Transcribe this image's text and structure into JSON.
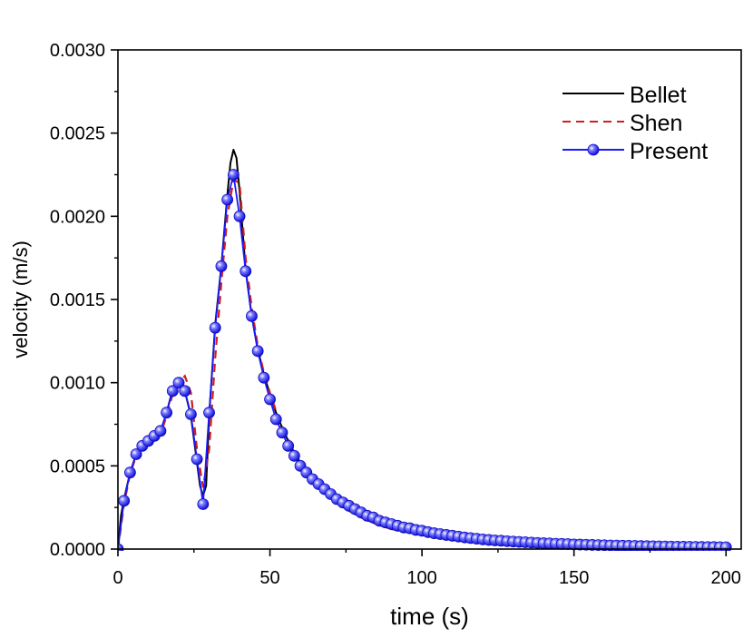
{
  "chart_data": {
    "type": "line",
    "title": "",
    "xlabel": "time (s)",
    "ylabel": "velocity (m/s)",
    "xlim": [
      0,
      205
    ],
    "ylim": [
      0,
      0.003
    ],
    "x_ticks": [
      0,
      50,
      100,
      150,
      200
    ],
    "x_tick_labels": [
      "0",
      "50",
      "100",
      "150",
      "200"
    ],
    "y_ticks": [
      0,
      0.0005,
      0.001,
      0.0015,
      0.002,
      0.0025,
      0.003
    ],
    "y_tick_labels": [
      "0.0000",
      "0.0005",
      "0.0010",
      "0.0015",
      "0.0020",
      "0.0025",
      "0.0030"
    ],
    "grid": false,
    "legend_position": "top-right",
    "series": [
      {
        "name": "Bellet",
        "style": "solid",
        "color": "#000000",
        "points": [
          [
            0,
            0
          ],
          [
            1,
            0.0002
          ],
          [
            2,
            0.0003
          ],
          [
            4,
            0.00046
          ],
          [
            6,
            0.00057
          ],
          [
            8,
            0.00063
          ],
          [
            10,
            0.00066
          ],
          [
            12,
            0.00068
          ],
          [
            14,
            0.0007
          ],
          [
            16,
            0.00082
          ],
          [
            18,
            0.00096
          ],
          [
            20,
            0.00101
          ],
          [
            22,
            0.00095
          ],
          [
            24,
            0.0008
          ],
          [
            26,
            0.00052
          ],
          [
            27,
            0.00038
          ],
          [
            28,
            0.00032
          ],
          [
            29,
            0.00038
          ],
          [
            30,
            0.0008
          ],
          [
            32,
            0.00135
          ],
          [
            34,
            0.0017
          ],
          [
            36,
            0.00213
          ],
          [
            37,
            0.00232
          ],
          [
            38,
            0.0024
          ],
          [
            39,
            0.00235
          ],
          [
            40,
            0.00215
          ],
          [
            42,
            0.00168
          ],
          [
            44,
            0.0014
          ],
          [
            46,
            0.0012
          ],
          [
            48,
            0.00105
          ],
          [
            50,
            0.00093
          ],
          [
            52,
            0.00082
          ],
          [
            54,
            0.00073
          ],
          [
            56,
            0.00065
          ],
          [
            58,
            0.00058
          ],
          [
            60,
            0.00052
          ],
          [
            65,
            0.0004
          ],
          [
            70,
            0.00031
          ],
          [
            75,
            0.00024
          ],
          [
            80,
            0.00019
          ],
          [
            85,
            0.00015
          ],
          [
            90,
            0.00012
          ],
          [
            100,
            9e-05
          ],
          [
            110,
            6e-05
          ],
          [
            120,
            4.5e-05
          ],
          [
            130,
            3.5e-05
          ],
          [
            140,
            2.7e-05
          ],
          [
            150,
            2e-05
          ],
          [
            160,
            1.7e-05
          ],
          [
            170,
            1.4e-05
          ],
          [
            180,
            1.2e-05
          ],
          [
            190,
            1e-05
          ],
          [
            200,
            9e-06
          ]
        ]
      },
      {
        "name": "Shen",
        "style": "dashed",
        "color": "#cc1f1f",
        "points": [
          [
            0,
            0
          ],
          [
            2,
            0.00027
          ],
          [
            4,
            0.00045
          ],
          [
            6,
            0.00056
          ],
          [
            8,
            0.00062
          ],
          [
            10,
            0.00065
          ],
          [
            12,
            0.00067
          ],
          [
            14,
            0.00069
          ],
          [
            16,
            0.0008
          ],
          [
            18,
            0.00093
          ],
          [
            20,
            0.001
          ],
          [
            22,
            0.00104
          ],
          [
            24,
            0.00094
          ],
          [
            26,
            0.0006
          ],
          [
            28,
            0.00037
          ],
          [
            30,
            0.0006
          ],
          [
            32,
            0.00115
          ],
          [
            34,
            0.0016
          ],
          [
            36,
            0.002
          ],
          [
            38,
            0.00222
          ],
          [
            40,
            0.0022
          ],
          [
            42,
            0.00175
          ],
          [
            44,
            0.00145
          ],
          [
            46,
            0.00122
          ],
          [
            48,
            0.00106
          ],
          [
            50,
            0.00094
          ],
          [
            52,
            0.00083
          ],
          [
            54,
            0.00074
          ],
          [
            56,
            0.00066
          ],
          [
            58,
            0.00059
          ],
          [
            60,
            0.00053
          ],
          [
            65,
            0.00041
          ],
          [
            70,
            0.00031
          ],
          [
            75,
            0.00024
          ],
          [
            80,
            0.00019
          ],
          [
            85,
            0.00015
          ],
          [
            90,
            0.00012
          ],
          [
            100,
            8.5e-05
          ],
          [
            110,
            6e-05
          ],
          [
            120,
            4.4e-05
          ],
          [
            130,
            3.4e-05
          ],
          [
            140,
            2.6e-05
          ],
          [
            150,
            2e-05
          ],
          [
            160,
            1.6e-05
          ],
          [
            170,
            1.3e-05
          ],
          [
            180,
            1.1e-05
          ],
          [
            190,
            1e-05
          ],
          [
            200,
            9e-06
          ]
        ]
      },
      {
        "name": "Present",
        "style": "solid-markers",
        "color": "#1a1aff",
        "points": [
          [
            0,
            0
          ],
          [
            2,
            0.00029
          ],
          [
            4,
            0.00046
          ],
          [
            6,
            0.00057
          ],
          [
            8,
            0.00062
          ],
          [
            10,
            0.00065
          ],
          [
            12,
            0.00068
          ],
          [
            14,
            0.00071
          ],
          [
            16,
            0.00082
          ],
          [
            18,
            0.00095
          ],
          [
            20,
            0.001
          ],
          [
            22,
            0.00095
          ],
          [
            24,
            0.00081
          ],
          [
            26,
            0.00054
          ],
          [
            28,
            0.00027
          ],
          [
            30,
            0.00082
          ],
          [
            32,
            0.00133
          ],
          [
            34,
            0.0017
          ],
          [
            36,
            0.0021
          ],
          [
            38,
            0.00225
          ],
          [
            40,
            0.002
          ],
          [
            42,
            0.00167
          ],
          [
            44,
            0.0014
          ],
          [
            46,
            0.00119
          ],
          [
            48,
            0.00103
          ],
          [
            50,
            0.0009
          ],
          [
            52,
            0.00078
          ],
          [
            54,
            0.0007
          ],
          [
            56,
            0.00062
          ],
          [
            58,
            0.00056
          ],
          [
            60,
            0.0005
          ],
          [
            62,
            0.00046
          ],
          [
            64,
            0.00042
          ],
          [
            66,
            0.00039
          ],
          [
            68,
            0.00036
          ],
          [
            70,
            0.00033
          ],
          [
            72,
            0.0003
          ],
          [
            74,
            0.00028
          ],
          [
            76,
            0.00026
          ],
          [
            78,
            0.00024
          ],
          [
            80,
            0.00022
          ],
          [
            82,
            0.0002
          ],
          [
            84,
            0.00019
          ],
          [
            86,
            0.00017
          ],
          [
            88,
            0.00016
          ],
          [
            90,
            0.00015
          ],
          [
            92,
            0.00014
          ],
          [
            94,
            0.00013
          ],
          [
            96,
            0.000125
          ],
          [
            98,
            0.000115
          ],
          [
            100,
            0.00011
          ],
          [
            102,
            0.000102
          ],
          [
            104,
            9.5e-05
          ],
          [
            106,
            9e-05
          ],
          [
            108,
            8.5e-05
          ],
          [
            110,
            8e-05
          ],
          [
            112,
            7.5e-05
          ],
          [
            114,
            7e-05
          ],
          [
            116,
            6.6e-05
          ],
          [
            118,
            6.2e-05
          ],
          [
            120,
            5.8e-05
          ],
          [
            122,
            5.5e-05
          ],
          [
            124,
            5.2e-05
          ],
          [
            126,
            5e-05
          ],
          [
            128,
            4.7e-05
          ],
          [
            130,
            4.5e-05
          ],
          [
            132,
            4.3e-05
          ],
          [
            134,
            4.1e-05
          ],
          [
            136,
            3.9e-05
          ],
          [
            138,
            3.7e-05
          ],
          [
            140,
            3.5e-05
          ],
          [
            142,
            3.4e-05
          ],
          [
            144,
            3.2e-05
          ],
          [
            146,
            3.1e-05
          ],
          [
            148,
            3e-05
          ],
          [
            150,
            2.8e-05
          ],
          [
            152,
            2.7e-05
          ],
          [
            154,
            2.6e-05
          ],
          [
            156,
            2.5e-05
          ],
          [
            158,
            2.4e-05
          ],
          [
            160,
            2.3e-05
          ],
          [
            162,
            2.2e-05
          ],
          [
            164,
            2.1e-05
          ],
          [
            166,
            2e-05
          ],
          [
            168,
            1.95e-05
          ],
          [
            170,
            1.9e-05
          ],
          [
            172,
            1.82e-05
          ],
          [
            174,
            1.75e-05
          ],
          [
            176,
            1.7e-05
          ],
          [
            178,
            1.63e-05
          ],
          [
            180,
            1.57e-05
          ],
          [
            182,
            1.5e-05
          ],
          [
            184,
            1.45e-05
          ],
          [
            186,
            1.4e-05
          ],
          [
            188,
            1.35e-05
          ],
          [
            190,
            1.3e-05
          ],
          [
            192,
            1.26e-05
          ],
          [
            194,
            1.22e-05
          ],
          [
            196,
            1.18e-05
          ],
          [
            198,
            1.14e-05
          ],
          [
            200,
            1.1e-05
          ]
        ]
      }
    ]
  }
}
